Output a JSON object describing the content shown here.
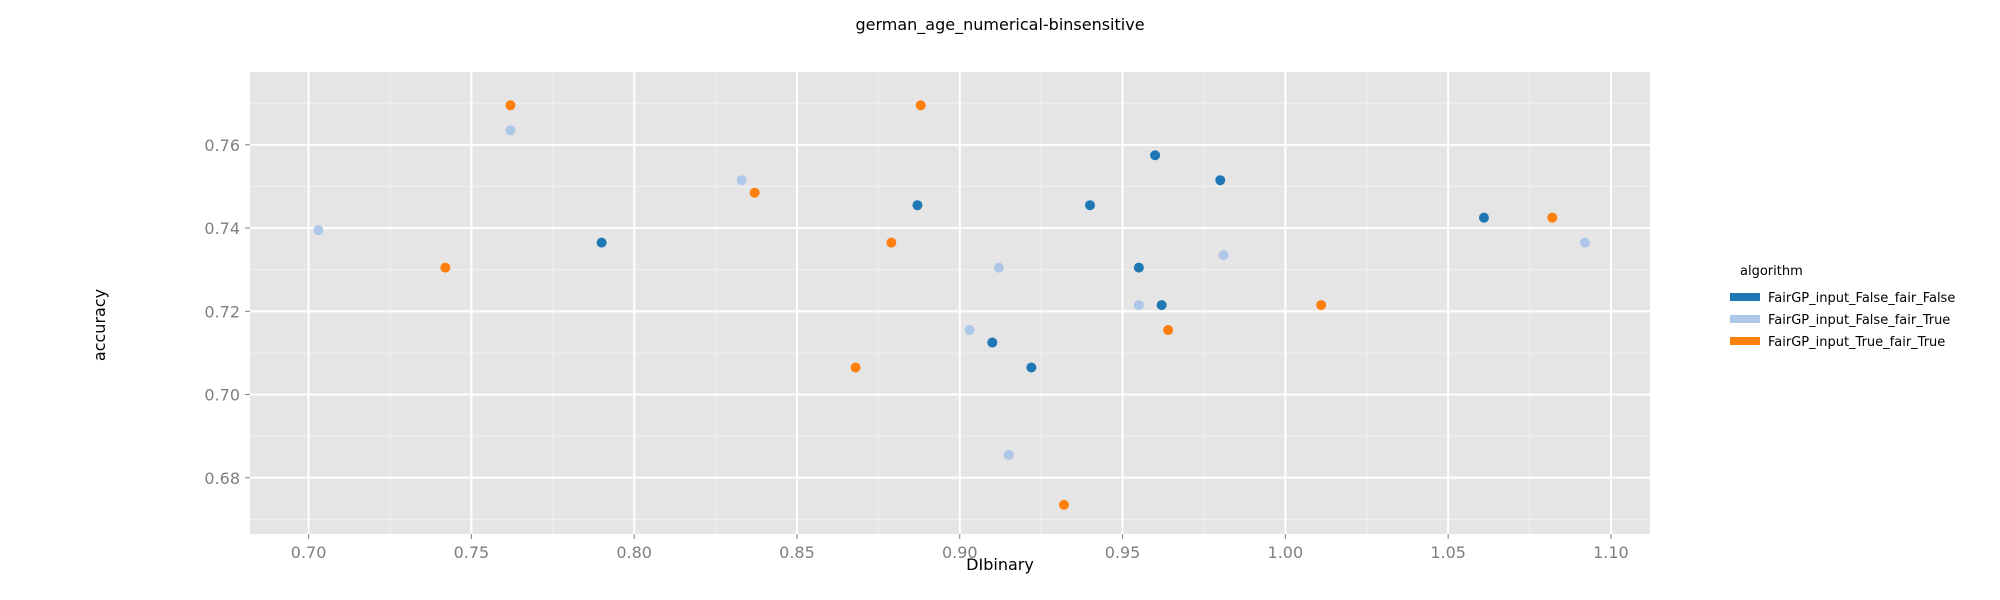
{
  "chart_data": {
    "type": "scatter",
    "title": "german_age_numerical-binsensitive",
    "xlabel": "DIbinary",
    "ylabel": "accuracy",
    "xlim": [
      0.682,
      1.112
    ],
    "ylim": [
      0.6665,
      0.7775
    ],
    "x_ticks": [
      "0.70",
      "0.75",
      "0.80",
      "0.85",
      "0.90",
      "0.95",
      "1.00",
      "1.05",
      "1.10"
    ],
    "y_ticks": [
      "0.68",
      "0.70",
      "0.72",
      "0.74",
      "0.76"
    ],
    "grid": true,
    "legend_title": "algorithm",
    "legend_position": "right",
    "series": [
      {
        "name": "FairGP_input_False_fair_False",
        "color": "#1f77b4",
        "points": [
          [
            0.79,
            0.7365
          ],
          [
            0.887,
            0.7455
          ],
          [
            0.91,
            0.7125
          ],
          [
            0.922,
            0.7065
          ],
          [
            0.94,
            0.7455
          ],
          [
            0.955,
            0.7305
          ],
          [
            0.96,
            0.7575
          ],
          [
            0.962,
            0.7215
          ],
          [
            0.98,
            0.7515
          ],
          [
            1.061,
            0.7425
          ]
        ]
      },
      {
        "name": "FairGP_input_False_fair_True",
        "color": "#aec7e8",
        "points": [
          [
            0.703,
            0.7395
          ],
          [
            0.762,
            0.7635
          ],
          [
            0.833,
            0.7515
          ],
          [
            0.903,
            0.7155
          ],
          [
            0.912,
            0.7305
          ],
          [
            0.915,
            0.6855
          ],
          [
            0.955,
            0.7215
          ],
          [
            0.981,
            0.7335
          ],
          [
            1.092,
            0.7365
          ]
        ]
      },
      {
        "name": "FairGP_input_True_fair_True",
        "color": "#ff7f0e",
        "points": [
          [
            0.742,
            0.7305
          ],
          [
            0.762,
            0.7695
          ],
          [
            0.837,
            0.7485
          ],
          [
            0.868,
            0.7065
          ],
          [
            0.879,
            0.7365
          ],
          [
            0.888,
            0.7695
          ],
          [
            0.932,
            0.6735
          ],
          [
            0.964,
            0.7155
          ],
          [
            1.011,
            0.7215
          ],
          [
            1.082,
            0.7425
          ]
        ]
      }
    ]
  }
}
